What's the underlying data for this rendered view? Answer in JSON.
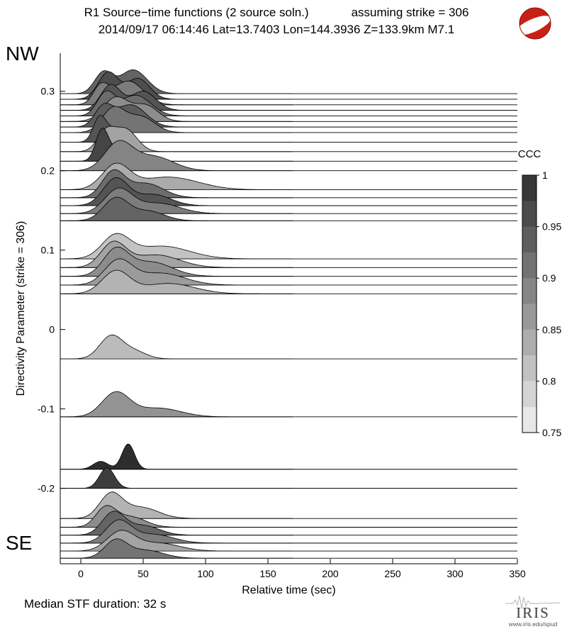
{
  "header": {
    "title_left": "R1 Source−time functions (2 source soln.)",
    "title_right": "assuming strike = 306",
    "subtitle": "2014/09/17 06:14:46  Lat=13.7403 Lon=144.3936  Z=133.9km  M7.1"
  },
  "corner_labels": {
    "top": "NW",
    "bottom": "SE"
  },
  "footer": {
    "text": "Median STF duration: 32 s"
  },
  "branding": {
    "logo_text": "IRIS",
    "logo_url": "www.iris.edu/spud"
  },
  "colors": {
    "beachball_red": "#c92016",
    "trace_outline": "#000000",
    "background": "#ffffff"
  },
  "chart_data": {
    "type": "area",
    "title": "R1 Source-time functions (2 source soln.), assuming strike = 306",
    "subtitle": "2014/09/17 06:14:46  Lat=13.7403 Lon=144.3936  Z=133.9km  M7.1",
    "xlabel": "Relative time (sec)",
    "ylabel": "Directivity Parameter (strike = 306)",
    "xlim": [
      -16.5,
      350
    ],
    "ylim": [
      -0.295,
      0.348
    ],
    "xticks": [
      0,
      50,
      100,
      150,
      200,
      250,
      300,
      350
    ],
    "xtick_labels": [
      "0",
      "50",
      "100",
      "150",
      "200",
      "250",
      "300",
      "350"
    ],
    "yticks": [
      0.3,
      0.2,
      0.1,
      0,
      -0.1,
      -0.2
    ],
    "ytick_labels": [
      "0.3",
      "0.2",
      "0.1",
      "0",
      "-0.1",
      "-0.2"
    ],
    "grid": false,
    "median_stf_duration_sec": 32,
    "colorbar": {
      "title": "CCC",
      "min": 0.75,
      "max": 1.0,
      "segments": 10,
      "ticks": [
        1,
        0.95,
        0.9,
        0.85,
        0.8,
        0.75
      ],
      "tick_labels": [
        "1",
        "0.95",
        "0.9",
        "0.85",
        "0.8",
        "0.75"
      ],
      "position": "right"
    },
    "encoding": "each trace: full-width baseline at 'directivity'; filled STF shape = sum of gaussians [center_sec, sigma_sec, height_in_directivity_units]; fill gray mapped from ccc (0.75=light, 1=dark)",
    "traces": [
      {
        "directivity": 0.297,
        "ccc": 0.93,
        "stf_gaussians": [
          [
            18,
            7,
            0.026
          ],
          [
            42,
            11,
            0.03
          ]
        ]
      },
      {
        "directivity": 0.29,
        "ccc": 0.96,
        "stf_gaussians": [
          [
            22,
            8,
            0.034
          ],
          [
            46,
            9,
            0.026
          ]
        ]
      },
      {
        "directivity": 0.283,
        "ccc": 0.9,
        "stf_gaussians": [
          [
            16,
            6,
            0.022
          ],
          [
            38,
            12,
            0.03
          ]
        ]
      },
      {
        "directivity": 0.276,
        "ccc": 0.95,
        "stf_gaussians": [
          [
            24,
            8,
            0.032
          ],
          [
            50,
            10,
            0.024
          ]
        ]
      },
      {
        "directivity": 0.269,
        "ccc": 0.92,
        "stf_gaussians": [
          [
            20,
            7,
            0.028
          ],
          [
            44,
            12,
            0.026
          ]
        ]
      },
      {
        "directivity": 0.262,
        "ccc": 0.88,
        "stf_gaussians": [
          [
            28,
            10,
            0.03
          ],
          [
            52,
            10,
            0.02
          ]
        ]
      },
      {
        "directivity": 0.255,
        "ccc": 0.94,
        "stf_gaussians": [
          [
            18,
            7,
            0.024
          ],
          [
            40,
            12,
            0.028
          ]
        ]
      },
      {
        "directivity": 0.248,
        "ccc": 0.91,
        "stf_gaussians": [
          [
            26,
            9,
            0.03
          ],
          [
            48,
            11,
            0.02
          ]
        ]
      },
      {
        "directivity": 0.236,
        "ccc": 0.95,
        "stf_gaussians": [
          [
            15,
            5,
            0.03
          ],
          [
            27,
            7,
            0.016
          ]
        ]
      },
      {
        "directivity": 0.224,
        "ccc": 0.85,
        "stf_gaussians": [
          [
            20,
            7,
            0.024
          ],
          [
            36,
            9,
            0.028
          ]
        ]
      },
      {
        "directivity": 0.212,
        "ccc": 0.97,
        "stf_gaussians": [
          [
            17,
            5,
            0.038
          ],
          [
            30,
            8,
            0.014
          ]
        ]
      },
      {
        "directivity": 0.2,
        "ccc": 0.89,
        "stf_gaussians": [
          [
            30,
            11,
            0.034
          ],
          [
            58,
            16,
            0.018
          ]
        ]
      },
      {
        "directivity": 0.176,
        "ccc": 0.84,
        "stf_gaussians": [
          [
            28,
            11,
            0.03
          ],
          [
            70,
            24,
            0.016
          ]
        ]
      },
      {
        "directivity": 0.166,
        "ccc": 0.92,
        "stf_gaussians": [
          [
            26,
            9,
            0.032
          ],
          [
            52,
            14,
            0.018
          ]
        ]
      },
      {
        "directivity": 0.156,
        "ccc": 0.95,
        "stf_gaussians": [
          [
            28,
            10,
            0.034
          ],
          [
            58,
            14,
            0.014
          ]
        ]
      },
      {
        "directivity": 0.146,
        "ccc": 0.9,
        "stf_gaussians": [
          [
            30,
            11,
            0.03
          ],
          [
            62,
            17,
            0.013
          ]
        ]
      },
      {
        "directivity": 0.137,
        "ccc": 0.93,
        "stf_gaussians": [
          [
            28,
            10,
            0.028
          ],
          [
            54,
            13,
            0.012
          ]
        ]
      },
      {
        "directivity": 0.089,
        "ccc": 0.81,
        "stf_gaussians": [
          [
            28,
            11,
            0.028
          ],
          [
            65,
            22,
            0.016
          ]
        ]
      },
      {
        "directivity": 0.078,
        "ccc": 0.85,
        "stf_gaussians": [
          [
            26,
            10,
            0.03
          ],
          [
            60,
            19,
            0.016
          ]
        ]
      },
      {
        "directivity": 0.067,
        "ccc": 0.88,
        "stf_gaussians": [
          [
            28,
            10,
            0.032
          ],
          [
            56,
            17,
            0.018
          ]
        ]
      },
      {
        "directivity": 0.056,
        "ccc": 0.86,
        "stf_gaussians": [
          [
            30,
            11,
            0.03
          ],
          [
            64,
            19,
            0.015
          ]
        ]
      },
      {
        "directivity": 0.045,
        "ccc": 0.83,
        "stf_gaussians": [
          [
            28,
            11,
            0.028
          ],
          [
            70,
            21,
            0.013
          ]
        ]
      },
      {
        "directivity": -0.037,
        "ccc": 0.82,
        "stf_gaussians": [
          [
            24,
            9,
            0.028
          ],
          [
            42,
            10,
            0.01
          ]
        ]
      },
      {
        "directivity": -0.11,
        "ccc": 0.87,
        "stf_gaussians": [
          [
            28,
            11,
            0.03
          ],
          [
            62,
            18,
            0.011
          ]
        ]
      },
      {
        "directivity": -0.176,
        "ccc": 1.0,
        "stf_gaussians": [
          [
            38,
            5,
            0.032
          ],
          [
            16,
            6,
            0.01
          ]
        ]
      },
      {
        "directivity": -0.2,
        "ccc": 0.98,
        "stf_gaussians": [
          [
            21,
            6,
            0.026
          ]
        ]
      },
      {
        "directivity": -0.238,
        "ccc": 0.83,
        "stf_gaussians": [
          [
            24,
            9,
            0.03
          ],
          [
            48,
            14,
            0.014
          ]
        ]
      },
      {
        "directivity": -0.249,
        "ccc": 0.88,
        "stf_gaussians": [
          [
            20,
            8,
            0.024
          ],
          [
            40,
            12,
            0.013
          ]
        ]
      },
      {
        "directivity": -0.259,
        "ccc": 0.93,
        "stf_gaussians": [
          [
            26,
            9,
            0.028
          ],
          [
            50,
            13,
            0.012
          ]
        ]
      },
      {
        "directivity": -0.269,
        "ccc": 0.9,
        "stf_gaussians": [
          [
            30,
            10,
            0.027
          ],
          [
            58,
            16,
            0.011
          ]
        ]
      },
      {
        "directivity": -0.279,
        "ccc": 0.85,
        "stf_gaussians": [
          [
            32,
            11,
            0.024
          ],
          [
            62,
            17,
            0.01
          ]
        ]
      },
      {
        "directivity": -0.288,
        "ccc": 0.91,
        "stf_gaussians": [
          [
            28,
            9,
            0.022
          ],
          [
            52,
            14,
            0.01
          ]
        ]
      }
    ]
  }
}
